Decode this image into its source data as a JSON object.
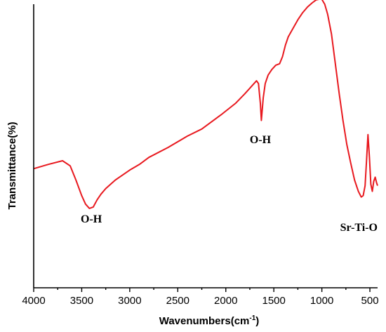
{
  "chart_data": {
    "type": "line",
    "title": "",
    "xlabel": "Wavenumbers(cm",
    "xlabel_sup": "-1",
    "xlabel_close": ")",
    "ylabel": "Transmittance(%)",
    "xlim": [
      4000,
      420
    ],
    "ylim": [
      0,
      100
    ],
    "x_ticks": [
      4000,
      3500,
      3000,
      2500,
      2000,
      1500,
      1000,
      500
    ],
    "x_tick_labels": [
      "4000",
      "3500",
      "3000",
      "2500",
      "2000",
      "1500",
      "1000",
      "500"
    ],
    "y_ticks_shown": false,
    "grid": false,
    "series": [
      {
        "color": "#e8191f",
        "x": [
          4000,
          3850,
          3700,
          3620,
          3560,
          3500,
          3460,
          3420,
          3380,
          3340,
          3300,
          3250,
          3150,
          3000,
          2900,
          2800,
          2600,
          2400,
          2250,
          2150,
          2050,
          1900,
          1800,
          1720,
          1680,
          1660,
          1640,
          1630,
          1610,
          1590,
          1560,
          1520,
          1480,
          1440,
          1410,
          1380,
          1350,
          1300,
          1250,
          1200,
          1150,
          1100,
          1060,
          1020,
          1000,
          970,
          940,
          900,
          860,
          820,
          780,
          740,
          700,
          660,
          620,
          590,
          570,
          550,
          535,
          520,
          505,
          490,
          475,
          460,
          445,
          430,
          420
        ],
        "y": [
          42.0,
          43.5,
          44.8,
          43.0,
          38.0,
          32.5,
          29.5,
          28.0,
          28.5,
          31.0,
          33.0,
          35.0,
          38.0,
          41.5,
          43.5,
          46.0,
          49.5,
          53.5,
          56.0,
          58.5,
          61.0,
          65.0,
          68.5,
          71.5,
          73.0,
          72.0,
          65.0,
          59.0,
          67.0,
          72.0,
          75.0,
          77.0,
          78.5,
          79.0,
          81.5,
          85.5,
          88.5,
          91.5,
          94.5,
          97.0,
          99.0,
          100.5,
          101.5,
          101.8,
          101.7,
          100.0,
          96.5,
          89.5,
          79.0,
          68.5,
          59.0,
          50.5,
          44.0,
          38.0,
          34.0,
          32.0,
          32.5,
          36.0,
          45.0,
          54.0,
          46.0,
          36.5,
          34.0,
          37.5,
          39.0,
          37.0,
          36.0
        ]
      }
    ],
    "annotations": [
      {
        "text": "O-H",
        "x": 3400,
        "y": 23
      },
      {
        "text": "O-H",
        "x": 1640,
        "y": 51
      },
      {
        "text": "Sr-Ti-O",
        "x": 420,
        "y": 20
      }
    ]
  }
}
